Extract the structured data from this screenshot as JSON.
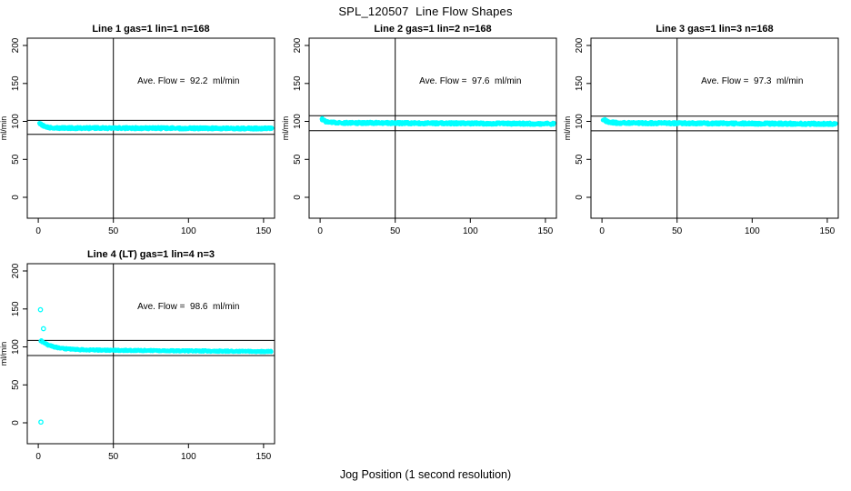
{
  "chart_data": {
    "type": "scatter",
    "title": "SPL_120507  Line Flow Shapes",
    "xlabel": "Jog Position (1 second resolution)",
    "ylabel": "ml/min",
    "x_ticks": [
      0,
      50,
      100,
      150
    ],
    "y_ticks": [
      0,
      50,
      100,
      150,
      200
    ],
    "xlim": [
      -7.3,
      157.3
    ],
    "ylim": [
      -27.5,
      209.6
    ],
    "vline_x": 50,
    "point_color": "#00ffff",
    "line_color": "#000000",
    "grid": false,
    "annotation_pos": {
      "x": 100,
      "y": 150
    },
    "panels": [
      {
        "title": "Line 1 gas=1 lin=1 n=168",
        "annotation": "Ave. Flow =  92.2  ml/min",
        "ave_flow": 92.2,
        "n_runs": 168,
        "ref_lines": [
          101.4,
          83.0
        ],
        "profile": {
          "start": 97.5,
          "settle": 91.3,
          "tau": 3,
          "drift": -0.6,
          "noise": 1.3,
          "x_start": 1,
          "x_end": 156,
          "passes": 3,
          "step": 0.75
        },
        "outliers": []
      },
      {
        "title": "Line 2 gas=1 lin=2 n=168",
        "annotation": "Ave. Flow =  97.6  ml/min",
        "ave_flow": 97.6,
        "n_runs": 168,
        "ref_lines": [
          107.4,
          87.8
        ],
        "profile": {
          "start": 103.5,
          "settle": 98.2,
          "tau": 3,
          "drift": -1.4,
          "noise": 1.4,
          "x_start": 1,
          "x_end": 156,
          "passes": 3,
          "step": 0.75
        },
        "outliers": []
      },
      {
        "title": "Line 3 gas=1 lin=3 n=168",
        "annotation": "Ave. Flow =  97.3  ml/min",
        "ave_flow": 97.3,
        "n_runs": 168,
        "ref_lines": [
          107.0,
          87.6
        ],
        "profile": {
          "start": 103.0,
          "settle": 97.9,
          "tau": 3,
          "drift": -1.2,
          "noise": 1.4,
          "x_start": 1,
          "x_end": 156,
          "passes": 3,
          "step": 0.75
        },
        "outliers": []
      },
      {
        "title": "Line 4 (LT) gas=1 lin=4 n=3",
        "annotation": "Ave. Flow =  98.6  ml/min",
        "ave_flow": 98.6,
        "n_runs": 3,
        "ref_lines": [
          108.5,
          88.7
        ],
        "profile": {
          "start": 108.0,
          "settle": 96.3,
          "tau": 8,
          "drift": -2.4,
          "noise": 0.8,
          "x_start": 2,
          "x_end": 155,
          "passes": 3,
          "step": 1.0
        },
        "outliers": [
          [
            1.5,
            149
          ],
          [
            3.5,
            124
          ],
          [
            1.8,
            1
          ]
        ]
      }
    ]
  }
}
